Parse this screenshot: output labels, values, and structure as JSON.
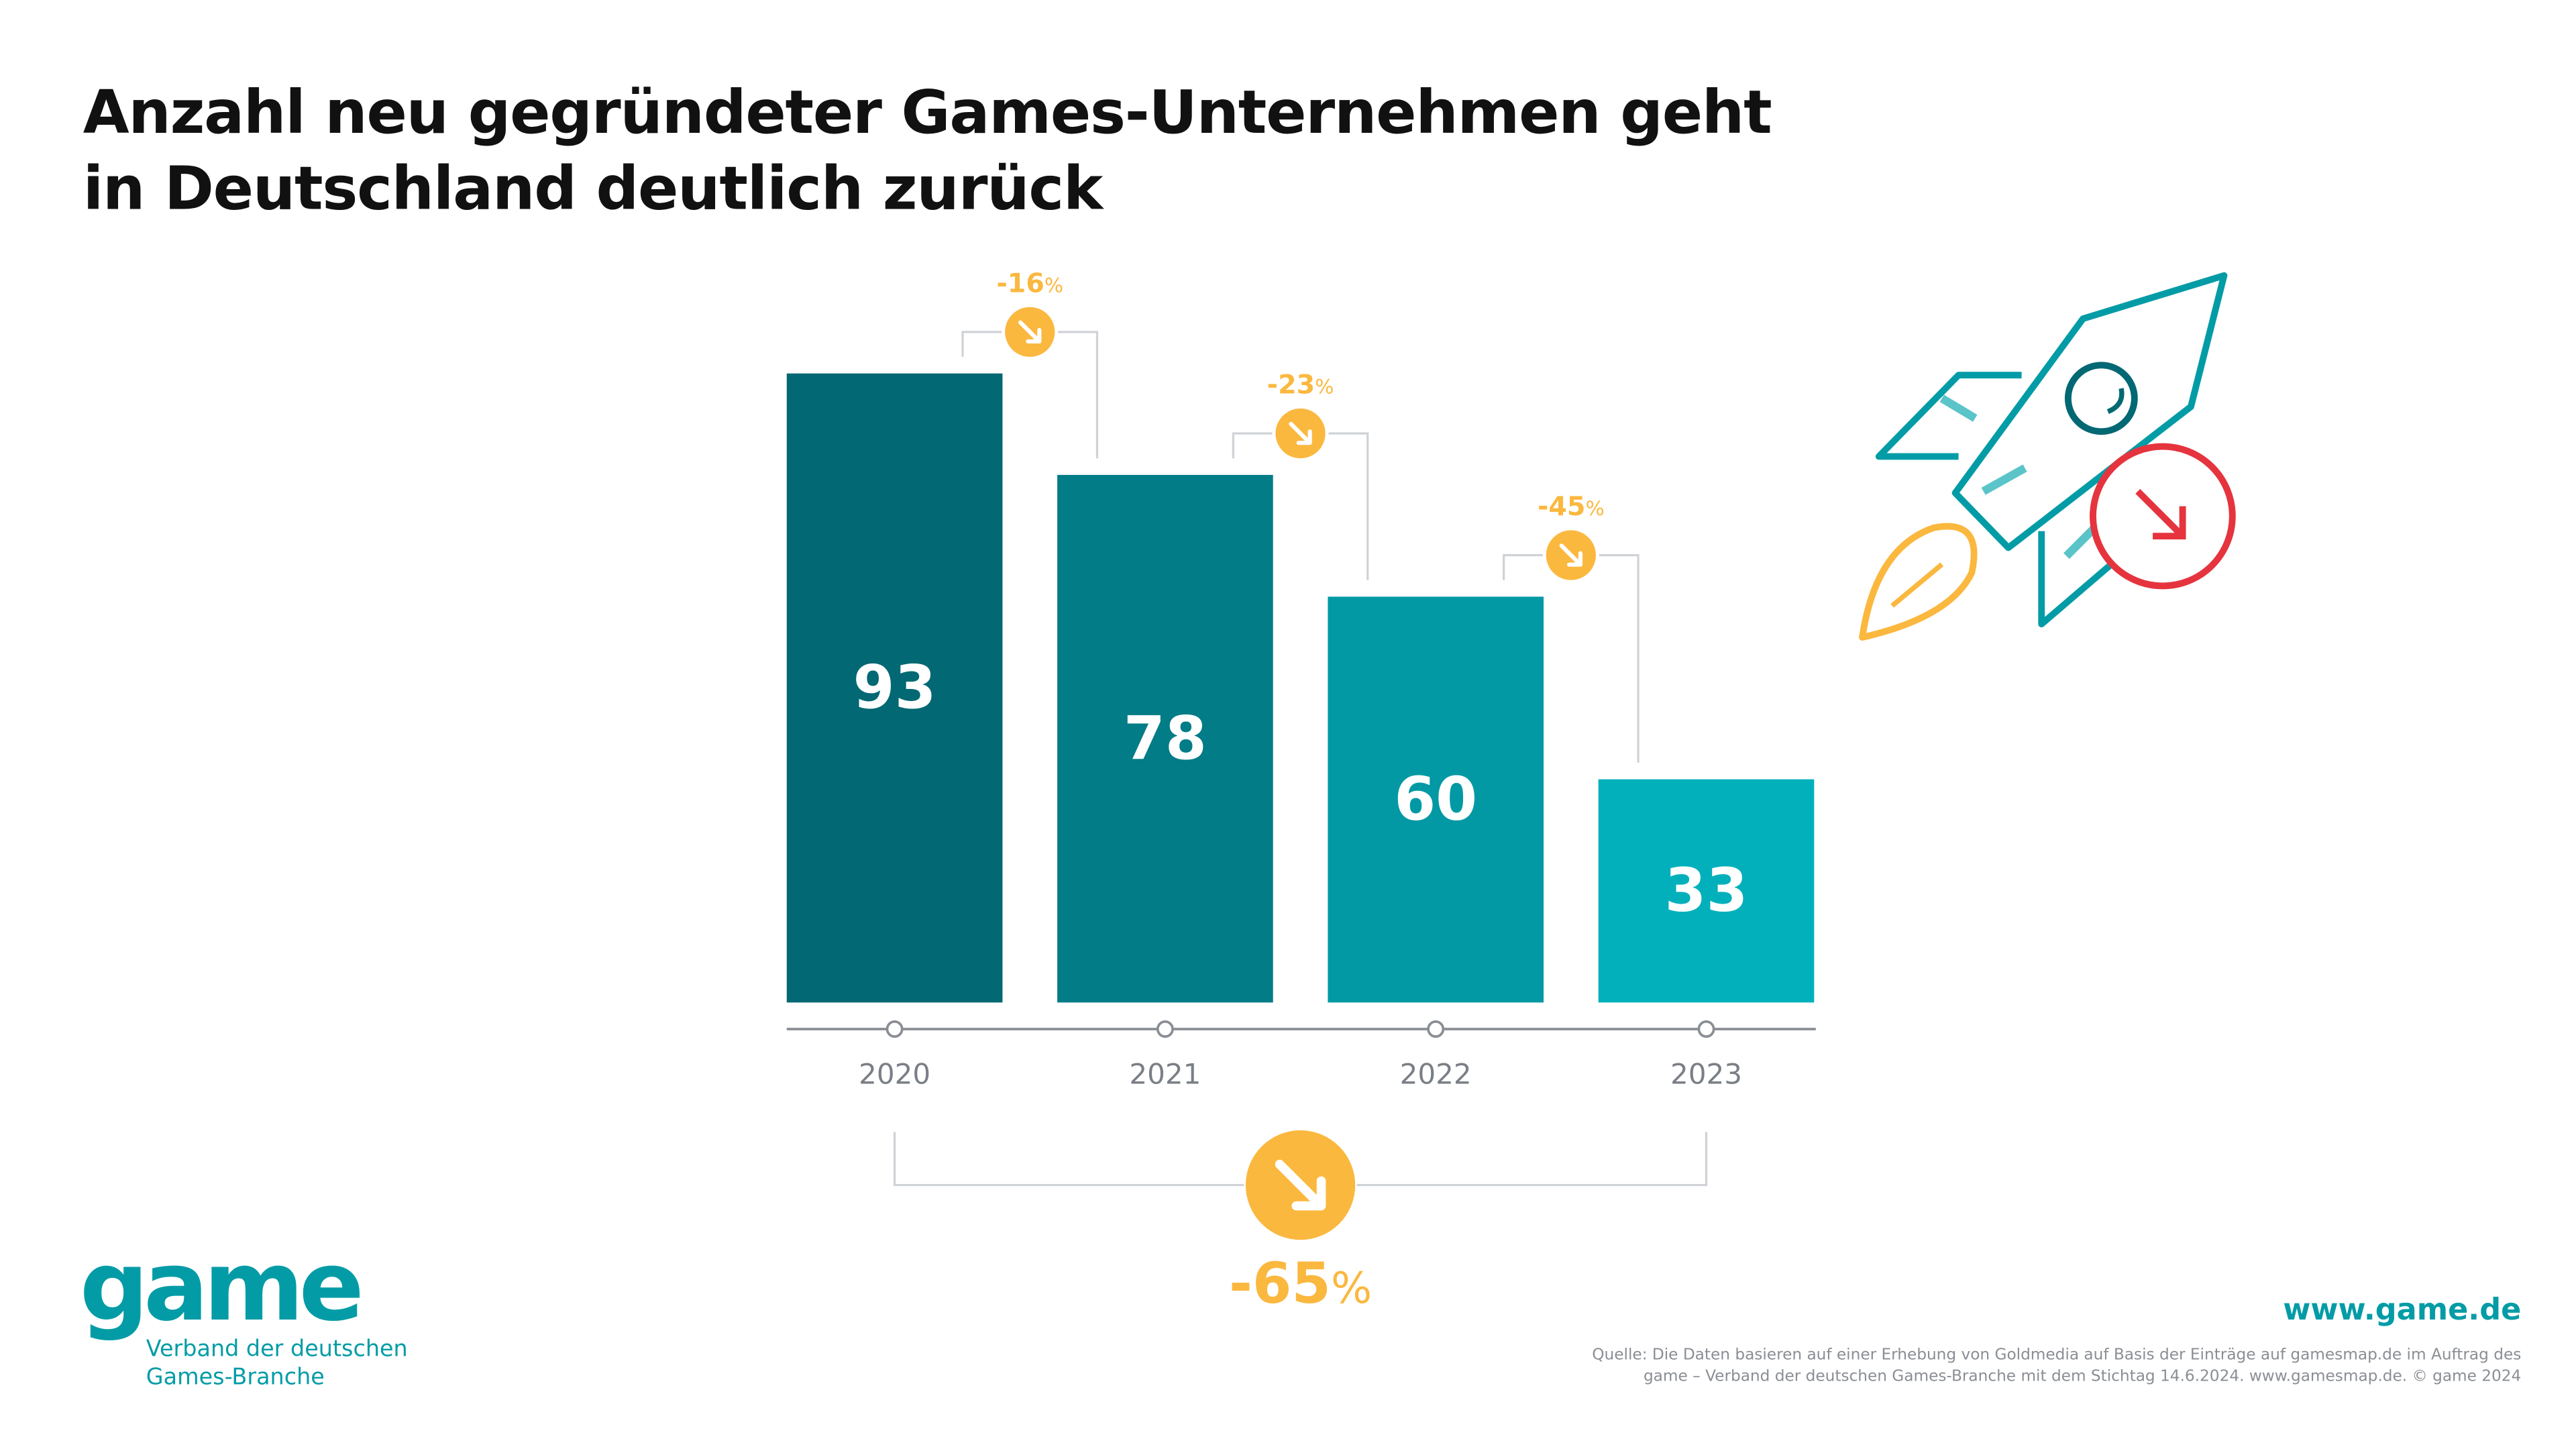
{
  "title": [
    "Anzahl neu gegründeter Games-Unternehmen geht",
    "in Deutschland deutlich zurück"
  ],
  "chart_data": {
    "type": "bar",
    "categories": [
      "2020",
      "2021",
      "2022",
      "2023"
    ],
    "values": [
      93,
      78,
      60,
      33
    ],
    "data_labels": [
      "93",
      "78",
      "60",
      "33"
    ],
    "changes": [
      {
        "from": "2020",
        "to": "2021",
        "label": "-16",
        "unit": "%"
      },
      {
        "from": "2021",
        "to": "2022",
        "label": "-23",
        "unit": "%"
      },
      {
        "from": "2022",
        "to": "2023",
        "label": "-45",
        "unit": "%"
      }
    ],
    "total_change": {
      "from": "2020",
      "to": "2023",
      "label": "-65",
      "unit": "%"
    },
    "ylim": [
      0,
      100
    ],
    "grid": false,
    "bar_colors": [
      "#026873",
      "#027c87",
      "#0399a4",
      "#02b0bb"
    ],
    "accent_color": "#fbb83f",
    "axis_color": "#8a8e94"
  },
  "illustration": {
    "icon": "rocket-icon",
    "badge": "down-arrow-circle-icon",
    "badge_color": "#e5343e",
    "rocket_color": "#039ca6",
    "flame_color": "#fbb83f"
  },
  "logo": {
    "word": "game",
    "subtitle": [
      "Verband der deutschen",
      "Games-Branche"
    ]
  },
  "website": "www.game.de",
  "source": [
    "Quelle: Die Daten basieren auf einer Erhebung von Goldmedia auf Basis der Einträge auf gamesmap.de im Auftrag des",
    "game – Verband der deutschen Games-Branche mit dem Stichtag 14.6.2024. www.gamesmap.de. © game 2024"
  ]
}
